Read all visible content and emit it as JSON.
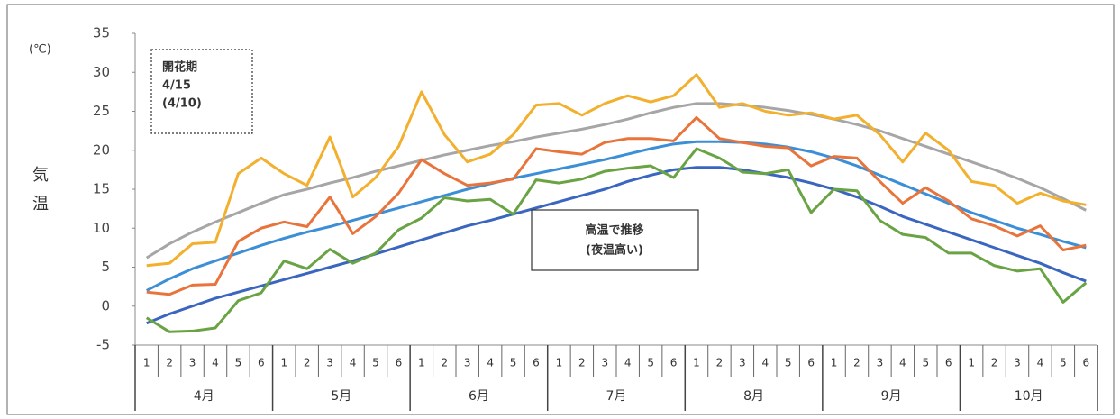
{
  "chart_data": {
    "type": "line",
    "unit_label": "(℃)",
    "ylabel": [
      "気",
      "温"
    ],
    "annotations": [
      {
        "lines": [
          "開花期",
          "4/15",
          "(4/10)"
        ],
        "border": "dashed"
      },
      {
        "lines": [
          "高温で推移",
          "(夜温高い)"
        ],
        "border": "solid"
      }
    ],
    "categories": [
      "1",
      "2",
      "3",
      "4",
      "5",
      "6",
      "1",
      "2",
      "3",
      "4",
      "5",
      "6",
      "1",
      "2",
      "3",
      "4",
      "5",
      "6",
      "1",
      "2",
      "3",
      "4",
      "5",
      "6",
      "1",
      "2",
      "3",
      "4",
      "5",
      "6",
      "1",
      "2",
      "3",
      "4",
      "5",
      "6",
      "1",
      "2",
      "3",
      "4",
      "5",
      "6"
    ],
    "group_labels": [
      "4月",
      "5月",
      "6月",
      "7月",
      "8月",
      "9月",
      "10月"
    ],
    "ylim": [
      -5,
      35
    ],
    "yticks": [
      -5,
      0,
      5,
      10,
      15,
      20,
      25,
      30,
      35
    ],
    "series": [
      {
        "color": "#a6a6a6",
        "values": [
          6.2,
          8,
          9.5,
          10.8,
          12,
          13.2,
          14.3,
          15,
          15.8,
          16.5,
          17.3,
          18,
          18.7,
          19.4,
          20,
          20.6,
          21.1,
          21.7,
          22.2,
          22.7,
          23.3,
          24,
          24.8,
          25.5,
          26,
          26,
          25.8,
          25.5,
          25.1,
          24.6,
          24,
          23.3,
          22.5,
          21.5,
          20.5,
          19.5,
          18.5,
          17.5,
          16.4,
          15.2,
          13.8,
          12.3
        ]
      },
      {
        "color": "#3c8fd6",
        "values": [
          2,
          3.5,
          4.8,
          5.8,
          6.8,
          7.8,
          8.7,
          9.5,
          10.2,
          11,
          11.8,
          12.6,
          13.4,
          14.2,
          15,
          15.7,
          16.4,
          17,
          17.6,
          18.2,
          18.8,
          19.5,
          20.2,
          20.8,
          21.1,
          21.1,
          21,
          20.8,
          20.4,
          19.8,
          19,
          18,
          16.8,
          15.6,
          14.4,
          13.2,
          12,
          11,
          10,
          9.2,
          8.3,
          7.5
        ]
      },
      {
        "color": "#3a66c0",
        "values": [
          -2.2,
          -1,
          0,
          1,
          1.8,
          2.6,
          3.4,
          4.2,
          5,
          5.8,
          6.7,
          7.6,
          8.5,
          9.4,
          10.3,
          11,
          11.8,
          12.6,
          13.4,
          14.2,
          15,
          16,
          16.8,
          17.5,
          17.8,
          17.8,
          17.5,
          17,
          16.5,
          15.8,
          15,
          14,
          12.8,
          11.5,
          10.5,
          9.5,
          8.5,
          7.5,
          6.5,
          5.5,
          4.3,
          3.2
        ]
      },
      {
        "color": "#f2b02e",
        "values": [
          5.2,
          5.5,
          8,
          8.2,
          17,
          19,
          17,
          15.5,
          21.7,
          14,
          16.5,
          20.5,
          27.5,
          22,
          18.5,
          19.5,
          22,
          25.8,
          26,
          24.5,
          26,
          27,
          26.2,
          27,
          29.7,
          25.5,
          26,
          25,
          24.5,
          24.8,
          24,
          24.5,
          22,
          18.5,
          22.2,
          20,
          16,
          15.5,
          13.2,
          14.5,
          13.5,
          13
        ]
      },
      {
        "color": "#e8743b",
        "values": [
          1.8,
          1.5,
          2.7,
          2.8,
          8.3,
          10,
          10.8,
          10.2,
          14,
          9.3,
          11.5,
          14.5,
          18.8,
          17,
          15.5,
          15.8,
          16.3,
          20.2,
          19.8,
          19.5,
          21,
          21.5,
          21.5,
          21.2,
          24.2,
          21.5,
          21,
          20.5,
          20.3,
          18,
          19.2,
          19,
          16,
          13.2,
          15.2,
          13.5,
          11.2,
          10.3,
          9,
          10.3,
          7.2,
          7.8
        ]
      },
      {
        "color": "#6aa343",
        "values": [
          -1.5,
          -3.3,
          -3.2,
          -2.8,
          0.7,
          1.7,
          5.8,
          4.8,
          7.3,
          5.5,
          6.8,
          9.8,
          11.3,
          13.9,
          13.5,
          13.7,
          11.8,
          16.2,
          15.8,
          16.3,
          17.3,
          17.7,
          18,
          16.5,
          20.2,
          19,
          17.2,
          17,
          17.5,
          12,
          15,
          14.8,
          11,
          9.2,
          8.8,
          6.8,
          6.8,
          5.2,
          4.5,
          4.8,
          0.5,
          3
        ]
      }
    ]
  }
}
